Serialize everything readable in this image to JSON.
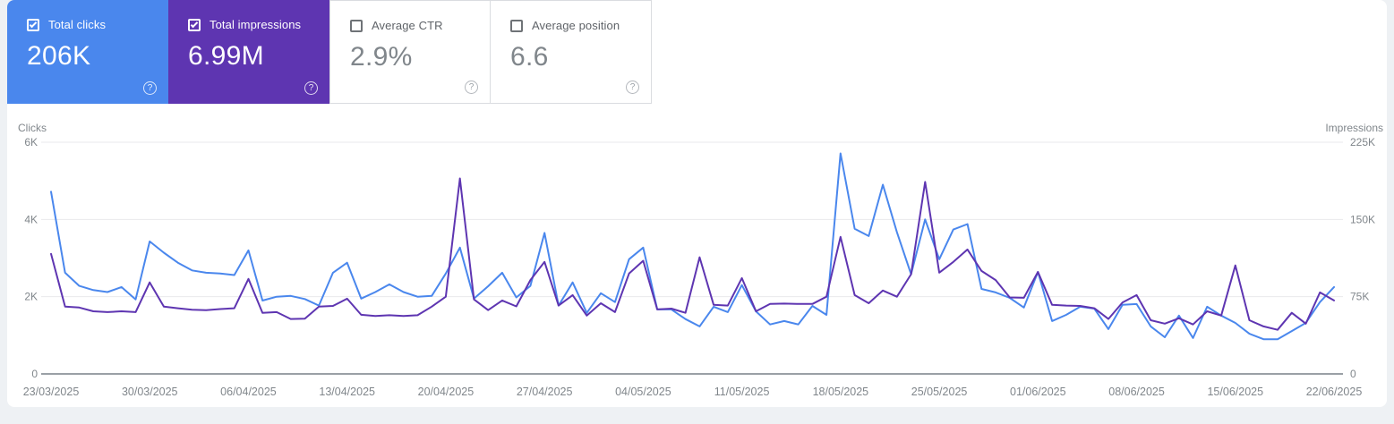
{
  "app": "Search Console Performance",
  "cards": [
    {
      "label": "Total clicks",
      "value": "206K",
      "selected": true,
      "color": "#4a87ed",
      "checkbox": "checked",
      "help_icon": "?"
    },
    {
      "label": "Total impressions",
      "value": "6.99M",
      "selected": true,
      "color": "#5e35b1",
      "checkbox": "checked",
      "help_icon": "?"
    },
    {
      "label": "Average CTR",
      "value": "2.9%",
      "selected": false,
      "color": "#ffffff",
      "checkbox": "unchecked",
      "help_icon": "?"
    },
    {
      "label": "Average position",
      "value": "6.6",
      "selected": false,
      "color": "#ffffff",
      "checkbox": "unchecked",
      "help_icon": "?"
    }
  ],
  "colors": {
    "clicks_line": "#4a87ed",
    "impressions_line": "#5e35b1",
    "axis_text": "#80868b",
    "gridline": "#e9eaec",
    "zero_line": "#9aa0a6",
    "page_background": "#eef1f4",
    "panel_background": "#ffffff",
    "card_border": "#dadce0"
  },
  "chart_data": {
    "type": "line",
    "grid": true,
    "left_axis": {
      "title": "Clicks",
      "range": [
        0,
        6000
      ],
      "tick_values": [
        0,
        2000,
        4000,
        6000
      ],
      "tick_labels": [
        "0",
        "2K",
        "4K",
        "6K"
      ]
    },
    "right_axis": {
      "title": "Impressions",
      "range": [
        0,
        225000
      ],
      "tick_values": [
        0,
        75000,
        150000,
        225000
      ],
      "tick_labels": [
        "0",
        "75K",
        "150K",
        "225K"
      ]
    },
    "x_tick_labels": [
      "23/03/2025",
      "30/03/2025",
      "06/04/2025",
      "13/04/2025",
      "20/04/2025",
      "27/04/2025",
      "04/05/2025",
      "11/05/2025",
      "18/05/2025",
      "25/05/2025",
      "01/06/2025",
      "08/06/2025",
      "15/06/2025",
      "22/06/2025"
    ],
    "x_tick_every_n_points": 7,
    "series": [
      {
        "name": "Total clicks",
        "axis": "left",
        "color": "#4a87ed",
        "values": [
          4720,
          2620,
          2280,
          2170,
          2120,
          2250,
          1930,
          3430,
          3140,
          2880,
          2680,
          2620,
          2600,
          2560,
          3200,
          1900,
          2000,
          2020,
          1940,
          1770,
          2620,
          2880,
          1950,
          2120,
          2320,
          2120,
          2000,
          2020,
          2600,
          3270,
          1950,
          2270,
          2620,
          1980,
          2280,
          3650,
          1770,
          2370,
          1580,
          2090,
          1860,
          2970,
          3270,
          1670,
          1670,
          1420,
          1230,
          1740,
          1600,
          2300,
          1620,
          1280,
          1370,
          1280,
          1760,
          1530,
          5710,
          3760,
          3570,
          4900,
          3670,
          2580,
          4000,
          2970,
          3740,
          3880,
          2200,
          2110,
          1970,
          1720,
          2640,
          1370,
          1530,
          1740,
          1690,
          1160,
          1790,
          1810,
          1230,
          950,
          1510,
          930,
          1740,
          1510,
          1320,
          1040,
          900,
          900,
          1110,
          1320,
          1860,
          2250
        ]
      },
      {
        "name": "Total impressions",
        "axis": "right",
        "color": "#5e35b1",
        "values": [
          116600,
          65300,
          64500,
          60800,
          60000,
          60800,
          60000,
          88900,
          65300,
          63800,
          62300,
          61900,
          63000,
          63800,
          92300,
          59300,
          60000,
          53300,
          53600,
          65300,
          66000,
          73100,
          57400,
          56300,
          57000,
          56300,
          57000,
          65300,
          75000,
          189800,
          72400,
          61900,
          71300,
          65600,
          91100,
          108800,
          66400,
          76500,
          56600,
          68600,
          60000,
          97500,
          109900,
          62600,
          63400,
          59300,
          113300,
          67100,
          66400,
          93000,
          60800,
          67900,
          68300,
          67900,
          67900,
          75000,
          133100,
          76500,
          68600,
          81000,
          75000,
          96800,
          186400,
          98300,
          108800,
          120800,
          100000,
          91100,
          74300,
          73900,
          99000,
          67100,
          66400,
          66000,
          63800,
          53300,
          69400,
          76500,
          52100,
          48800,
          54000,
          48000,
          60800,
          56600,
          105400,
          52100,
          46100,
          42800,
          59300,
          48800,
          79100,
          71300
        ]
      }
    ]
  }
}
